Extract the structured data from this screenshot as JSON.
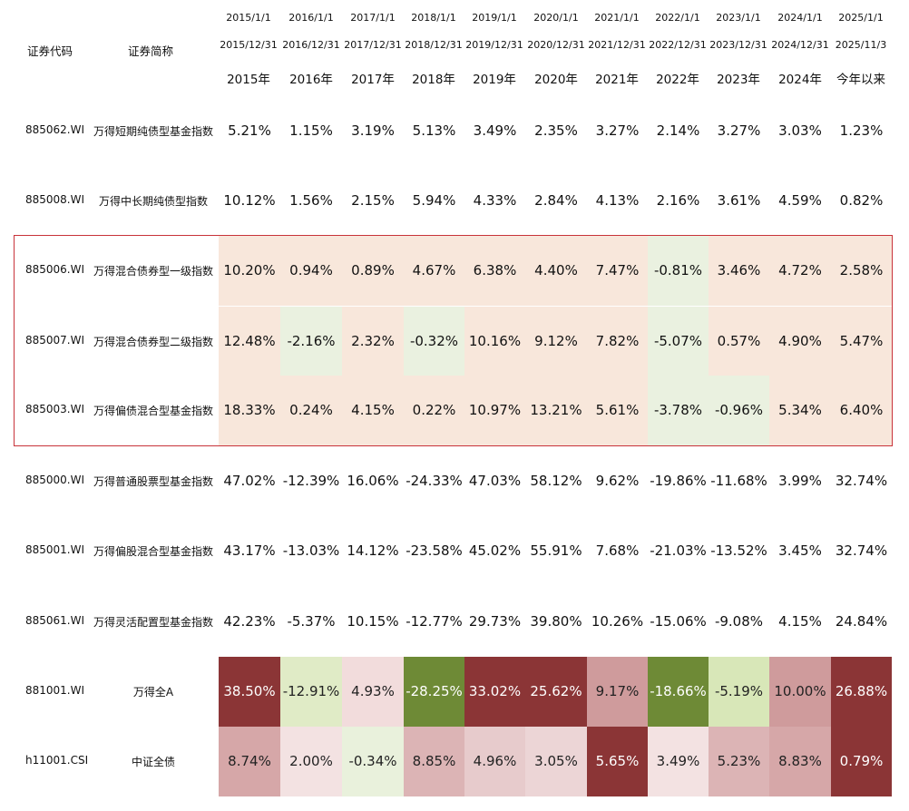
{
  "header": {
    "code_label": "证券代码",
    "name_label": "证券简称",
    "columns": [
      {
        "start": "2015/1/1",
        "end": "2015/12/31",
        "year": "2015年"
      },
      {
        "start": "2016/1/1",
        "end": "2016/12/31",
        "year": "2016年"
      },
      {
        "start": "2017/1/1",
        "end": "2017/12/31",
        "year": "2017年"
      },
      {
        "start": "2018/1/1",
        "end": "2018/12/31",
        "year": "2018年"
      },
      {
        "start": "2019/1/1",
        "end": "2019/12/31",
        "year": "2019年"
      },
      {
        "start": "2020/1/1",
        "end": "2020/12/31",
        "year": "2020年"
      },
      {
        "start": "2021/1/1",
        "end": "2021/12/31",
        "year": "2021年"
      },
      {
        "start": "2022/1/1",
        "end": "2022/12/31",
        "year": "2022年"
      },
      {
        "start": "2023/1/1",
        "end": "2023/12/31",
        "year": "2023年"
      },
      {
        "start": "2024/1/1",
        "end": "2024/12/31",
        "year": "2024年"
      },
      {
        "start": "2025/1/1",
        "end": "2025/11/3",
        "year": "今年以来"
      }
    ]
  },
  "rows": [
    {
      "code": "885062.WI",
      "name": "万得短期纯债型基金指数",
      "values": [
        "5.21%",
        "1.15%",
        "3.19%",
        "5.13%",
        "3.49%",
        "2.35%",
        "3.27%",
        "2.14%",
        "3.27%",
        "3.03%",
        "1.23%"
      ],
      "fills": [
        "",
        "",
        "",
        "",
        "",
        "",
        "",
        "",
        "",
        "",
        ""
      ],
      "text_colors": [
        "",
        "",
        "",
        "",
        "",
        "",
        "",
        "",
        "",
        "",
        ""
      ]
    },
    {
      "code": "885008.WI",
      "name": "万得中长期纯债型指数",
      "values": [
        "10.12%",
        "1.56%",
        "2.15%",
        "5.94%",
        "4.33%",
        "2.84%",
        "4.13%",
        "2.16%",
        "3.61%",
        "4.59%",
        "0.82%"
      ],
      "fills": [
        "",
        "",
        "",
        "",
        "",
        "",
        "",
        "",
        "",
        "",
        ""
      ],
      "text_colors": [
        "",
        "",
        "",
        "",
        "",
        "",
        "",
        "",
        "",
        "",
        ""
      ]
    },
    {
      "code": "885006.WI",
      "name": "万得混合债券型一级指数",
      "values": [
        "10.20%",
        "0.94%",
        "0.89%",
        "4.67%",
        "6.38%",
        "4.40%",
        "7.47%",
        "-0.81%",
        "3.46%",
        "4.72%",
        "2.58%"
      ],
      "fills": [
        "#f8e7db",
        "#f8e7db",
        "#f8e7db",
        "#f8e7db",
        "#f8e7db",
        "#f8e7db",
        "#f8e7db",
        "#eaf1e0",
        "#f8e7db",
        "#f8e7db",
        "#f8e7db"
      ],
      "text_colors": [
        "",
        "",
        "",
        "",
        "",
        "",
        "",
        "",
        "",
        "",
        ""
      ]
    },
    {
      "code": "885007.WI",
      "name": "万得混合债券型二级指数",
      "values": [
        "12.48%",
        "-2.16%",
        "2.32%",
        "-0.32%",
        "10.16%",
        "9.12%",
        "7.82%",
        "-5.07%",
        "0.57%",
        "4.90%",
        "5.47%"
      ],
      "fills": [
        "#f8e7db",
        "#eaf1e0",
        "#f8e7db",
        "#eaf1e0",
        "#f8e7db",
        "#f8e7db",
        "#f8e7db",
        "#eaf1e0",
        "#f8e7db",
        "#f8e7db",
        "#f8e7db"
      ],
      "text_colors": [
        "",
        "",
        "",
        "",
        "",
        "",
        "",
        "",
        "",
        "",
        ""
      ]
    },
    {
      "code": "885003.WI",
      "name": "万得偏债混合型基金指数",
      "values": [
        "18.33%",
        "0.24%",
        "4.15%",
        "0.22%",
        "10.97%",
        "13.21%",
        "5.61%",
        "-3.78%",
        "-0.96%",
        "5.34%",
        "6.40%"
      ],
      "fills": [
        "#f8e7db",
        "#f8e7db",
        "#f8e7db",
        "#f8e7db",
        "#f8e7db",
        "#f8e7db",
        "#f8e7db",
        "#eaf1e0",
        "#eaf1e0",
        "#f8e7db",
        "#f8e7db"
      ],
      "text_colors": [
        "",
        "",
        "",
        "",
        "",
        "",
        "",
        "",
        "",
        "",
        ""
      ]
    },
    {
      "code": "885000.WI",
      "name": "万得普通股票型基金指数",
      "values": [
        "47.02%",
        "-12.39%",
        "16.06%",
        "-24.33%",
        "47.03%",
        "58.12%",
        "9.62%",
        "-19.86%",
        "-11.68%",
        "3.99%",
        "32.74%"
      ],
      "fills": [
        "",
        "",
        "",
        "",
        "",
        "",
        "",
        "",
        "",
        "",
        ""
      ],
      "text_colors": [
        "",
        "",
        "",
        "",
        "",
        "",
        "",
        "",
        "",
        "",
        ""
      ]
    },
    {
      "code": "885001.WI",
      "name": "万得偏股混合型基金指数",
      "values": [
        "43.17%",
        "-13.03%",
        "14.12%",
        "-23.58%",
        "45.02%",
        "55.91%",
        "7.68%",
        "-21.03%",
        "-13.52%",
        "3.45%",
        "32.74%"
      ],
      "fills": [
        "",
        "",
        "",
        "",
        "",
        "",
        "",
        "",
        "",
        "",
        ""
      ],
      "text_colors": [
        "",
        "",
        "",
        "",
        "",
        "",
        "",
        "",
        "",
        "",
        ""
      ]
    },
    {
      "code": "885061.WI",
      "name": "万得灵活配置型基金指数",
      "values": [
        "42.23%",
        "-5.37%",
        "10.15%",
        "-12.77%",
        "29.73%",
        "39.80%",
        "10.26%",
        "-15.06%",
        "-9.08%",
        "4.15%",
        "24.84%"
      ],
      "fills": [
        "",
        "",
        "",
        "",
        "",
        "",
        "",
        "",
        "",
        "",
        ""
      ],
      "text_colors": [
        "",
        "",
        "",
        "",
        "",
        "",
        "",
        "",
        "",
        "",
        ""
      ]
    },
    {
      "code": "881001.WI",
      "name": "万得全A",
      "values": [
        "38.50%",
        "-12.91%",
        "4.93%",
        "-28.25%",
        "33.02%",
        "25.62%",
        "9.17%",
        "-18.66%",
        "-5.19%",
        "10.00%",
        "26.88%"
      ],
      "fills": [
        "#8b3536",
        "#e0ebc6",
        "#f2dcdc",
        "#6e8a36",
        "#8b3536",
        "#8b3536",
        "#cf9b9c",
        "#6e8a36",
        "#d8e7b8",
        "#cf9b9c",
        "#8b3536"
      ],
      "text_colors": [
        "#ffffff",
        "#222222",
        "#222222",
        "#ffffff",
        "#ffffff",
        "#ffffff",
        "#222222",
        "#ffffff",
        "#222222",
        "#222222",
        "#ffffff"
      ]
    },
    {
      "code": "h11001.CSI",
      "name": "中证全债",
      "values": [
        "8.74%",
        "2.00%",
        "-0.34%",
        "8.85%",
        "4.96%",
        "3.05%",
        "5.65%",
        "3.49%",
        "5.23%",
        "8.83%",
        "0.79%"
      ],
      "fills": [
        "#d6a7a8",
        "#f3e2e2",
        "#e9f1dc",
        "#dcb4b5",
        "#e7cbcc",
        "#ecd5d6",
        "#8b3536",
        "#f3e2e2",
        "#dcb4b5",
        "#d6a7a8",
        "#8b3536"
      ],
      "text_colors": [
        "#222222",
        "#222222",
        "#222222",
        "#222222",
        "#222222",
        "#222222",
        "#ffffff",
        "#222222",
        "#222222",
        "#222222",
        "#ffffff"
      ]
    }
  ],
  "highlight": {
    "border_color": "#c8333a"
  }
}
